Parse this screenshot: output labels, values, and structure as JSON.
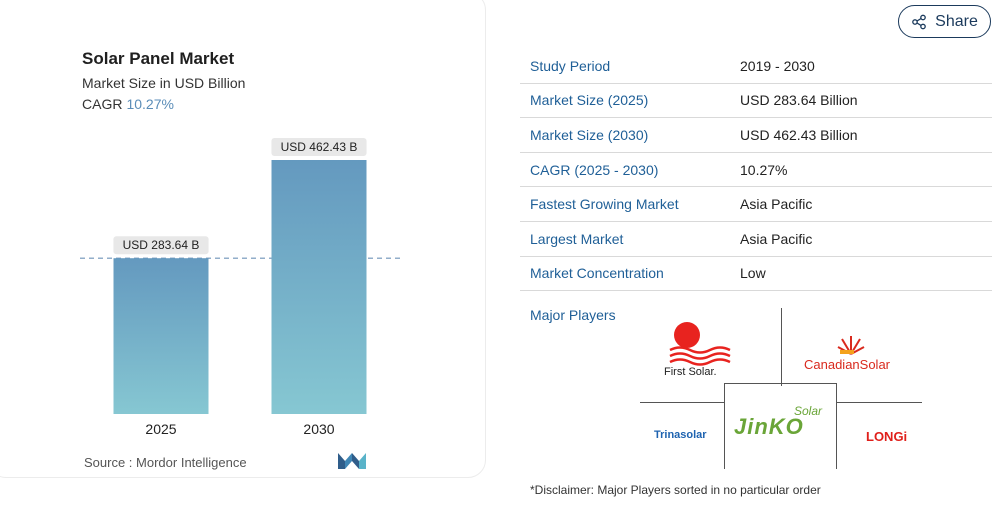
{
  "share": {
    "label": "Share",
    "icon": "share-icon"
  },
  "chart": {
    "title": "Solar Panel Market",
    "subtitle": "Market Size in USD Billion",
    "cagr_label": "CAGR",
    "cagr_value": "10.27%",
    "source_label": "Source :",
    "source_value": "Mordor Intelligence",
    "logo_icon": "mordor-logo-icon"
  },
  "chart_data": {
    "type": "bar",
    "title": "Solar Panel Market",
    "subtitle": "Market Size in USD Billion",
    "categories": [
      "2025",
      "2030"
    ],
    "values": [
      283.64,
      462.43
    ],
    "data_labels": [
      "USD 283.64 B",
      "USD 462.43 B"
    ],
    "reference_line": 283.64,
    "ylim": [
      0,
      462.43
    ],
    "grid": false,
    "colors": {
      "bar_top": "#6499bf",
      "bar_bottom": "#86c7d2",
      "reference_line": "#6f93b8"
    }
  },
  "info": {
    "rows": [
      {
        "key": "Study Period",
        "value": "2019 - 2030"
      },
      {
        "key": "Market Size (2025)",
        "value": "USD 283.64 Billion"
      },
      {
        "key": "Market Size (2030)",
        "value": "USD 462.43 Billion"
      },
      {
        "key": "CAGR (2025 - 2030)",
        "value": "10.27%"
      },
      {
        "key": "Fastest Growing Market",
        "value": "Asia Pacific"
      },
      {
        "key": "Largest Market",
        "value": "Asia Pacific"
      },
      {
        "key": "Market Concentration",
        "value": "Low"
      }
    ],
    "major_players_label": "Major Players"
  },
  "players": [
    {
      "name": "First Solar.",
      "icon": "first-solar-logo-icon"
    },
    {
      "name": "CanadianSolar",
      "icon": "canadian-solar-logo-icon"
    },
    {
      "name": "Trinasolar",
      "icon": "trina-solar-logo-icon"
    },
    {
      "name": "JinKO",
      "tag": "Solar",
      "icon": "jinko-solar-logo-icon"
    },
    {
      "name": "LONGi",
      "icon": "longi-logo-icon"
    }
  ],
  "disclaimer": "*Disclaimer: Major Players sorted in no particular order",
  "colors": {
    "accent": "#1f5f97",
    "first_solar_red": "#e8231f",
    "canadian_red": "#d92a1e",
    "jinko_green": "#6aa538",
    "trina_blue": "#1e63b0",
    "longi_red": "#e0201b"
  }
}
